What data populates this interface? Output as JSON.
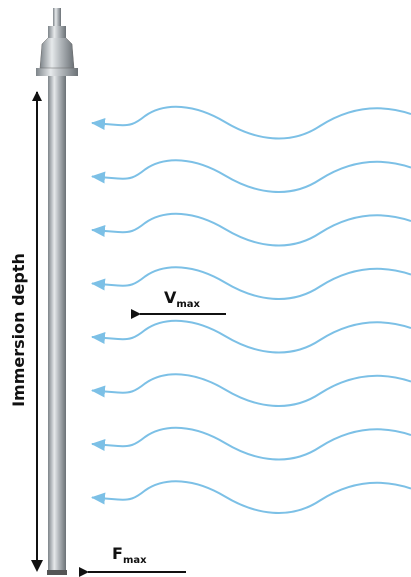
{
  "labels": {
    "immersion_depth": "Immersion depth",
    "v_symbol": "V",
    "v_subscript": "max",
    "f_symbol": "F",
    "f_subscript": "max"
  }
}
